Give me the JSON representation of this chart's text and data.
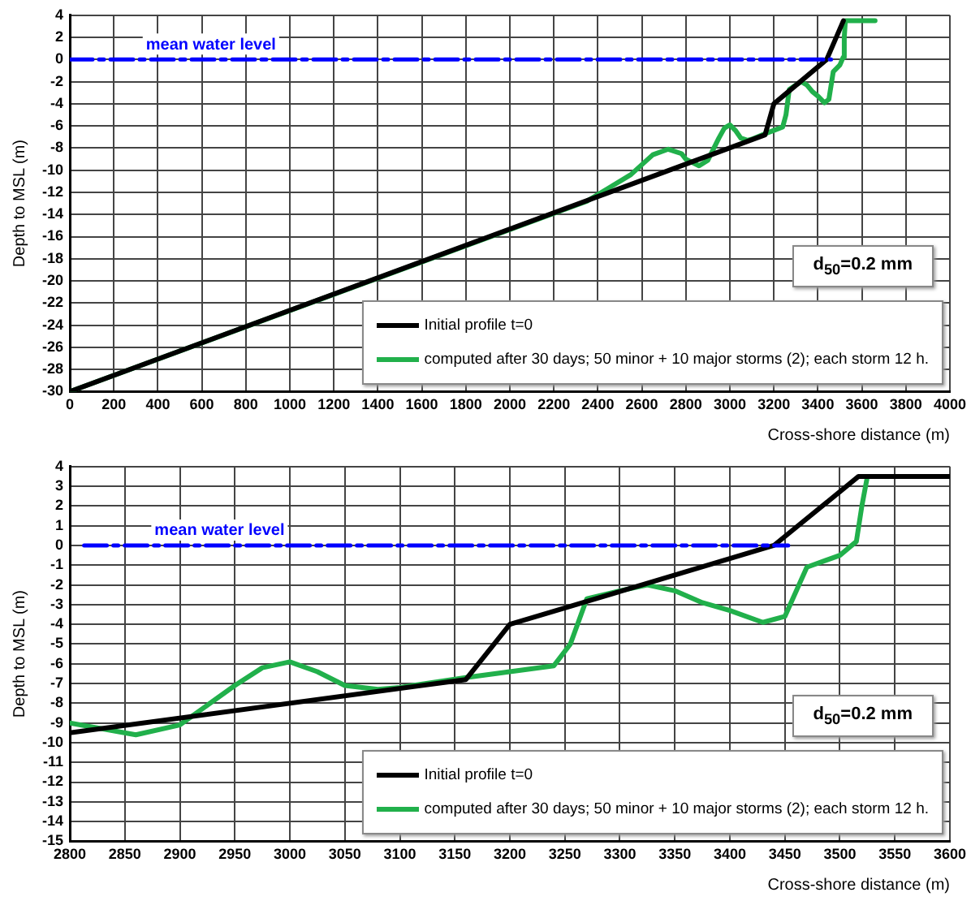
{
  "chart_data": [
    {
      "type": "line",
      "xlabel": "Cross-shore distance (m)",
      "ylabel": "Depth to MSL (m)",
      "xlim": [
        0,
        4000
      ],
      "xticks": [
        0,
        200,
        400,
        600,
        800,
        1000,
        1200,
        1400,
        1600,
        1800,
        2000,
        2200,
        2400,
        2600,
        2800,
        3000,
        3200,
        3400,
        3600,
        3800,
        4000
      ],
      "ylim": [
        -30,
        4
      ],
      "yticks": [
        -30,
        -28,
        -26,
        -24,
        -22,
        -20,
        -18,
        -16,
        -14,
        -12,
        -10,
        -8,
        -6,
        -4,
        -2,
        0,
        2,
        4
      ],
      "grid": true,
      "legend": "bottom right",
      "marker": "none",
      "series": [
        {
          "name": "mean water level",
          "color": "#0000ff",
          "line_style": "dashed",
          "x": [
            0,
            3460
          ],
          "values": [
            0,
            0
          ]
        },
        {
          "name": "Initial profile t=0",
          "color": "#000000",
          "x": [
            0,
            3160,
            3200,
            3440,
            3516
          ],
          "values": [
            -30,
            -6.8,
            -4,
            0,
            3.5
          ]
        },
        {
          "name": "computed after 30 days; 50 minor + 10 major storms (2); each storm 12 h.",
          "color": "#21b04b",
          "x": [
            0,
            2350,
            2450,
            2550,
            2650,
            2720,
            2780,
            2800,
            2860,
            2900,
            2950,
            2975,
            3000,
            3025,
            3050,
            3080,
            3100,
            3160,
            3200,
            3240,
            3255,
            3270,
            3300,
            3325,
            3350,
            3375,
            3400,
            3430,
            3450,
            3470,
            3500,
            3515,
            3520,
            3525,
            3660
          ],
          "values": [
            -30,
            -12.8,
            -11.6,
            -10.4,
            -8.6,
            -8.1,
            -8.5,
            -9,
            -9.6,
            -9.1,
            -7.1,
            -6.2,
            -5.9,
            -6.4,
            -7.1,
            -7.3,
            -7.2,
            -6.7,
            -6.4,
            -6.1,
            -5,
            -2.7,
            -2.3,
            -2,
            -2.3,
            -2.9,
            -3.3,
            -3.9,
            -3.6,
            -1.1,
            -0.5,
            0.2,
            2,
            3.5,
            3.5
          ]
        }
      ],
      "annotations": [
        "d$_{50}$=0.2 mm"
      ]
    },
    {
      "type": "line",
      "xlabel": "Cross-shore distance (m)",
      "ylabel": "Depth to MSL (m)",
      "xlim": [
        2800,
        3600
      ],
      "xticks": [
        2800,
        2850,
        2900,
        2950,
        3000,
        3050,
        3100,
        3150,
        3200,
        3250,
        3300,
        3350,
        3400,
        3450,
        3500,
        3550,
        3600
      ],
      "ylim": [
        -15,
        4
      ],
      "yticks": [
        -15,
        -14,
        -13,
        -12,
        -11,
        -10,
        -9,
        -8,
        -7,
        -6,
        -5,
        -4,
        -3,
        -2,
        -1,
        0,
        1,
        2,
        3,
        4
      ],
      "grid": true,
      "legend": "bottom right",
      "marker": "none",
      "series": [
        {
          "name": "mean water level",
          "color": "#0000ff",
          "line_style": "dashed",
          "x": [
            2813,
            3453
          ],
          "values": [
            0,
            0
          ]
        },
        {
          "name": "Initial profile t=0",
          "color": "#000000",
          "x": [
            2800,
            3160,
            3200,
            3440,
            3517,
            3600
          ],
          "values": [
            -9.5,
            -6.8,
            -4,
            0,
            3.5,
            3.5
          ]
        },
        {
          "name": "computed after 30 days; 50 minor + 10 major storms (2); each storm 12 h.",
          "color": "#21b04b",
          "x": [
            2800,
            2860,
            2900,
            2950,
            2975,
            3000,
            3025,
            3050,
            3080,
            3100,
            3160,
            3200,
            3240,
            3255,
            3270,
            3300,
            3325,
            3350,
            3375,
            3400,
            3430,
            3450,
            3470,
            3500,
            3515,
            3520,
            3525,
            3600
          ],
          "values": [
            -9,
            -9.6,
            -9.1,
            -7.1,
            -6.2,
            -5.9,
            -6.4,
            -7.1,
            -7.3,
            -7.2,
            -6.7,
            -6.4,
            -6.1,
            -5,
            -2.7,
            -2.3,
            -2,
            -2.3,
            -2.9,
            -3.3,
            -3.9,
            -3.6,
            -1.1,
            -0.5,
            0.2,
            2,
            3.5,
            3.5
          ]
        }
      ],
      "annotations": [
        "d$_{50}$=0.2 mm"
      ]
    }
  ]
}
